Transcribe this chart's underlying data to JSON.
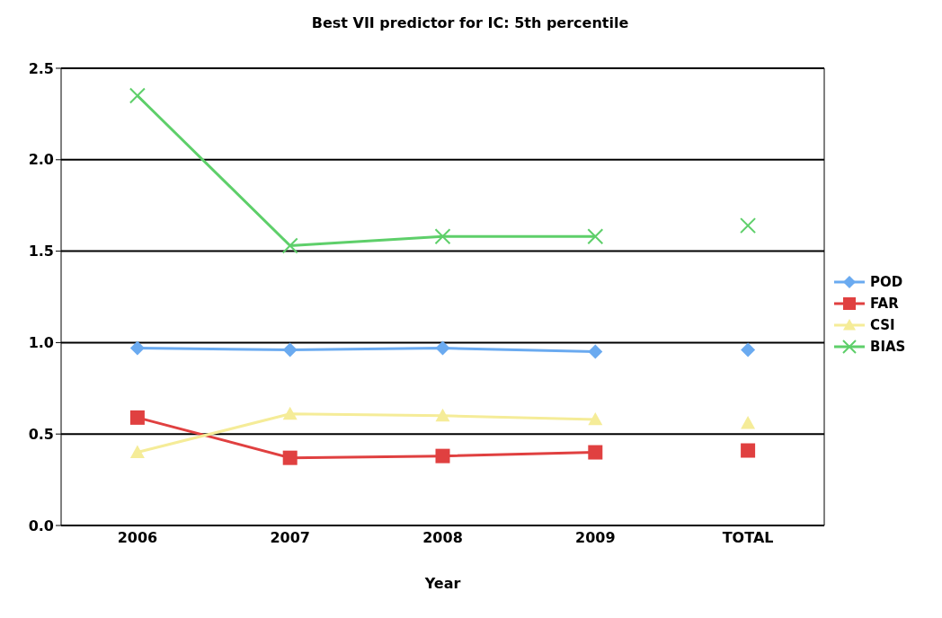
{
  "chart_data": {
    "type": "line",
    "title": "Best VII predictor for IC: 5th percentile",
    "xlabel": "Year",
    "categories": [
      "2006",
      "2007",
      "2008",
      "2009",
      "TOTAL"
    ],
    "series": [
      {
        "name": "POD",
        "color": "#6aaaf0",
        "marker": "diamond",
        "values": [
          0.97,
          0.96,
          0.97,
          0.95,
          null
        ]
      },
      {
        "name": "FAR",
        "color": "#e04040",
        "marker": "square",
        "values": [
          0.59,
          0.37,
          0.38,
          0.4,
          null
        ]
      },
      {
        "name": "CSI",
        "color": "#f5ec98",
        "marker": "triangle",
        "values": [
          0.4,
          0.61,
          0.6,
          0.58,
          null
        ]
      },
      {
        "name": "BIAS",
        "color": "#5ecf6a",
        "marker": "cross",
        "values": [
          2.35,
          1.53,
          1.58,
          1.58,
          null
        ]
      },
      {
        "type": "scatter",
        "color": "#6aaaf0",
        "marker": "diamond",
        "values": [
          null,
          null,
          null,
          null,
          0.96
        ]
      },
      {
        "type": "scatter",
        "color": "#e04040",
        "marker": "square",
        "values": [
          null,
          null,
          null,
          null,
          0.41
        ]
      },
      {
        "type": "scatter",
        "color": "#f5ec98",
        "marker": "triangle",
        "values": [
          null,
          null,
          null,
          null,
          0.56
        ]
      },
      {
        "type": "scatter",
        "color": "#5ecf6a",
        "marker": "cross",
        "values": [
          null,
          null,
          null,
          null,
          1.64
        ]
      }
    ],
    "ylim": [
      0,
      2.5
    ],
    "yticks": [
      {
        "value": 0,
        "label": "0.0"
      },
      {
        "value": 0.5,
        "label": "0.5"
      },
      {
        "value": 1,
        "label": "1.0"
      },
      {
        "value": 1.5,
        "label": "1.5"
      },
      {
        "value": 2,
        "label": "2.0"
      },
      {
        "value": 2.5,
        "label": "2.5"
      }
    ],
    "grid": "y",
    "legend": "right"
  }
}
